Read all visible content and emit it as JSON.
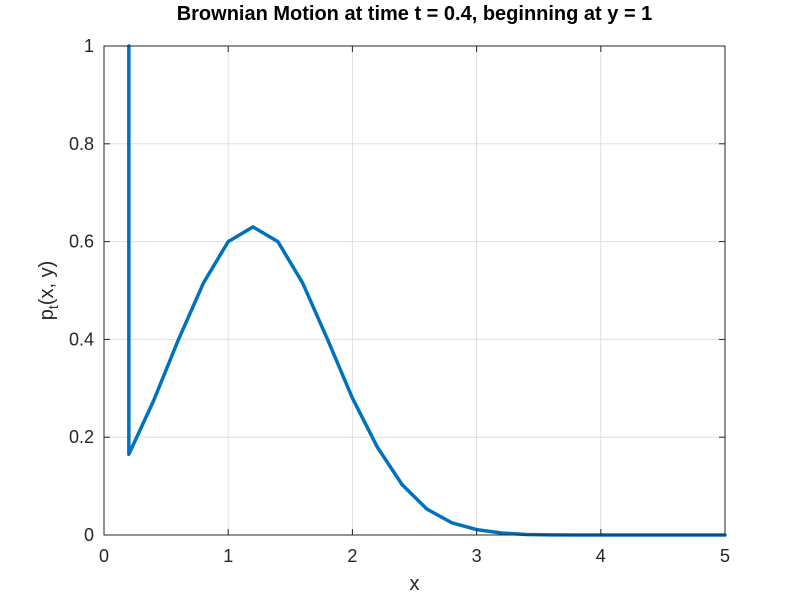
{
  "chart_data": {
    "type": "line",
    "title": "Brownian Motion at time t = 0.4, beginning at y = 1",
    "xlabel": "x",
    "ylabel": {
      "main": "p",
      "subscript": "t",
      "rest": "(x, y)"
    },
    "xlim": [
      0,
      5
    ],
    "ylim": [
      0,
      1
    ],
    "xticks": [
      "0",
      "1",
      "2",
      "3",
      "4",
      "5"
    ],
    "yticks": [
      "0",
      "0.2",
      "0.4",
      "0.6",
      "0.8",
      "1"
    ],
    "grid": true,
    "series": [
      {
        "color": "#0072bd",
        "x": [
          0.2,
          0.2,
          0.4,
          0.6,
          0.8,
          1.0,
          1.2,
          1.4,
          1.6,
          1.8,
          2.0,
          2.2,
          2.4,
          2.6,
          2.8,
          3.0,
          3.2,
          3.4,
          3.6,
          3.8,
          4.0,
          4.2,
          4.4,
          4.6,
          4.8,
          5.0
        ],
        "y": [
          1.0,
          0.165,
          0.275,
          0.4,
          0.515,
          0.6,
          0.63,
          0.6,
          0.515,
          0.4,
          0.28,
          0.18,
          0.103,
          0.053,
          0.025,
          0.011,
          0.004,
          0.001,
          0.0003,
          0.0001,
          0.0,
          0.0,
          0.0,
          0.0,
          0.0,
          0.0
        ]
      }
    ]
  }
}
